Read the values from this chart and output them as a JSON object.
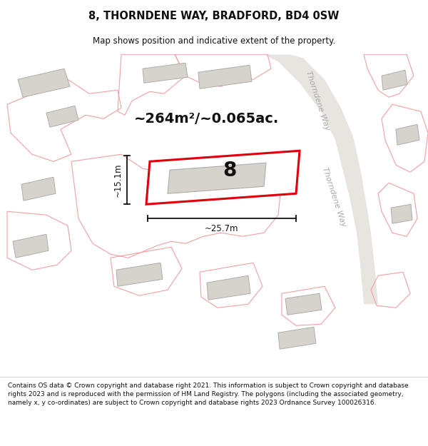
{
  "title_line1": "8, THORNDENE WAY, BRADFORD, BD4 0SW",
  "title_line2": "Map shows position and indicative extent of the property.",
  "area_text": "~264m²/~0.065ac.",
  "number_label": "8",
  "dim_width": "~25.7m",
  "dim_height": "~15.1m",
  "street_label_top": "Thorndene Way",
  "street_label_bot": "Thorndene Way",
  "footer_text": "Contains OS data © Crown copyright and database right 2021. This information is subject to Crown copyright and database rights 2023 and is reproduced with the permission of HM Land Registry. The polygons (including the associated geometry, namely x, y co-ordinates) are subject to Crown copyright and database rights 2023 Ordnance Survey 100026316.",
  "map_bg": "#f2f0ee",
  "plot_fill": "#ffffff",
  "plot_border": "#e0000a",
  "building_fill": "#d6d2cc",
  "building_edge": "#b0aca8",
  "plot_outline_color": "#f0a0a0",
  "road_curve_color": "#cccccc",
  "dim_color": "#111111",
  "text_color": "#111111",
  "street_color": "#aaaaaa",
  "footer_color": "#111111",
  "title_map_divider": "#cccccc"
}
